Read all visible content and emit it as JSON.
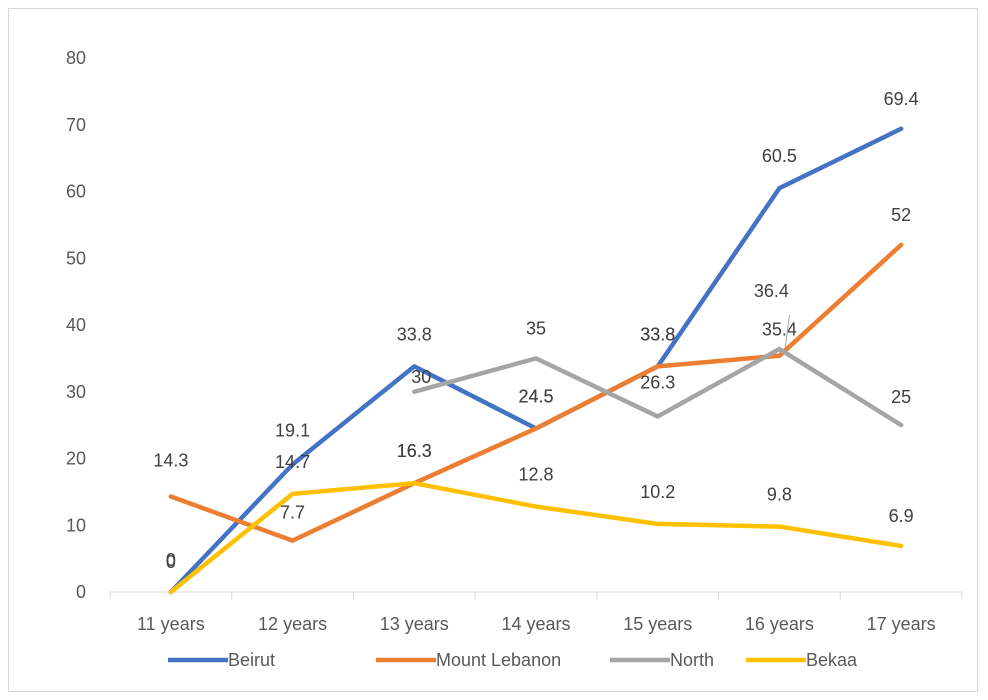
{
  "chart_data": {
    "type": "line",
    "title": "",
    "xlabel": "",
    "ylabel": "",
    "categories": [
      "11 years",
      "12 years",
      "13  years",
      "14 years",
      "15 years",
      "16 years",
      "17 years"
    ],
    "ylim": [
      0,
      80
    ],
    "yticks": [
      0,
      10,
      20,
      30,
      40,
      50,
      60,
      70,
      80
    ],
    "grid": false,
    "legend_position": "bottom",
    "series": [
      {
        "name": "Beirut",
        "color": "#4472c4",
        "values": [
          0,
          19.1,
          33.8,
          24.5,
          33.8,
          60.5,
          69.4
        ],
        "labels": [
          "0",
          "19.1",
          "33.8",
          "24.5",
          "33.8",
          "60.5",
          "69.4"
        ]
      },
      {
        "name": "Mount Lebanon",
        "color": "#ed7d31",
        "values": [
          14.3,
          7.7,
          16.3,
          24.5,
          33.8,
          35.4,
          52
        ],
        "labels": [
          "14.3",
          "7.7",
          "16.3",
          "24.5",
          "33.8",
          "35.4",
          "52"
        ]
      },
      {
        "name": "North",
        "color": "#a5a5a5",
        "values": [
          null,
          null,
          30,
          35,
          26.3,
          36.4,
          25
        ],
        "labels": [
          null,
          null,
          "30",
          "35",
          "26.3",
          "36.4",
          "25"
        ]
      },
      {
        "name": "Bekaa",
        "color": "#ffc000",
        "values": [
          0,
          14.7,
          16.3,
          12.8,
          10.2,
          9.8,
          6.9
        ],
        "labels": [
          "0",
          "14.7",
          "16.3",
          "12.8",
          "10.2",
          "9.8",
          "6.9"
        ]
      }
    ]
  }
}
